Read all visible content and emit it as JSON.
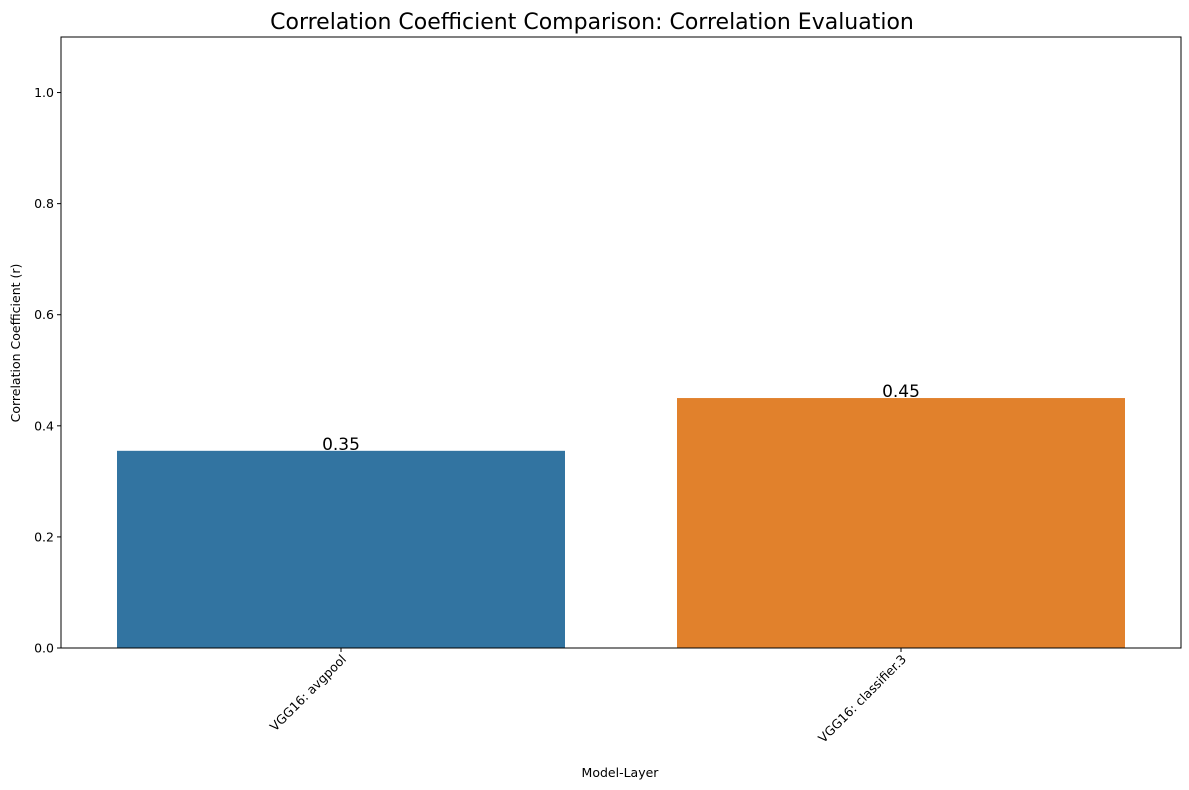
{
  "chart_data": {
    "type": "bar",
    "title": "Correlation Coefficient Comparison: Correlation Evaluation",
    "xlabel": "Model-Layer",
    "ylabel": "Correlation Coefficient (r)",
    "categories": [
      "VGG16: avgpool",
      "VGG16: classifier.3"
    ],
    "values": [
      0.355,
      0.45
    ],
    "data_labels": [
      "0.35",
      "0.45"
    ],
    "colors": [
      "#3274a1",
      "#e1812c"
    ],
    "ylim": [
      0,
      1.1
    ],
    "yticks": [
      0.0,
      0.2,
      0.4,
      0.6,
      0.8,
      1.0
    ],
    "ytick_labels": [
      "0.0",
      "0.2",
      "0.4",
      "0.6",
      "0.8",
      "1.0"
    ],
    "grid": false,
    "legend": "none"
  }
}
